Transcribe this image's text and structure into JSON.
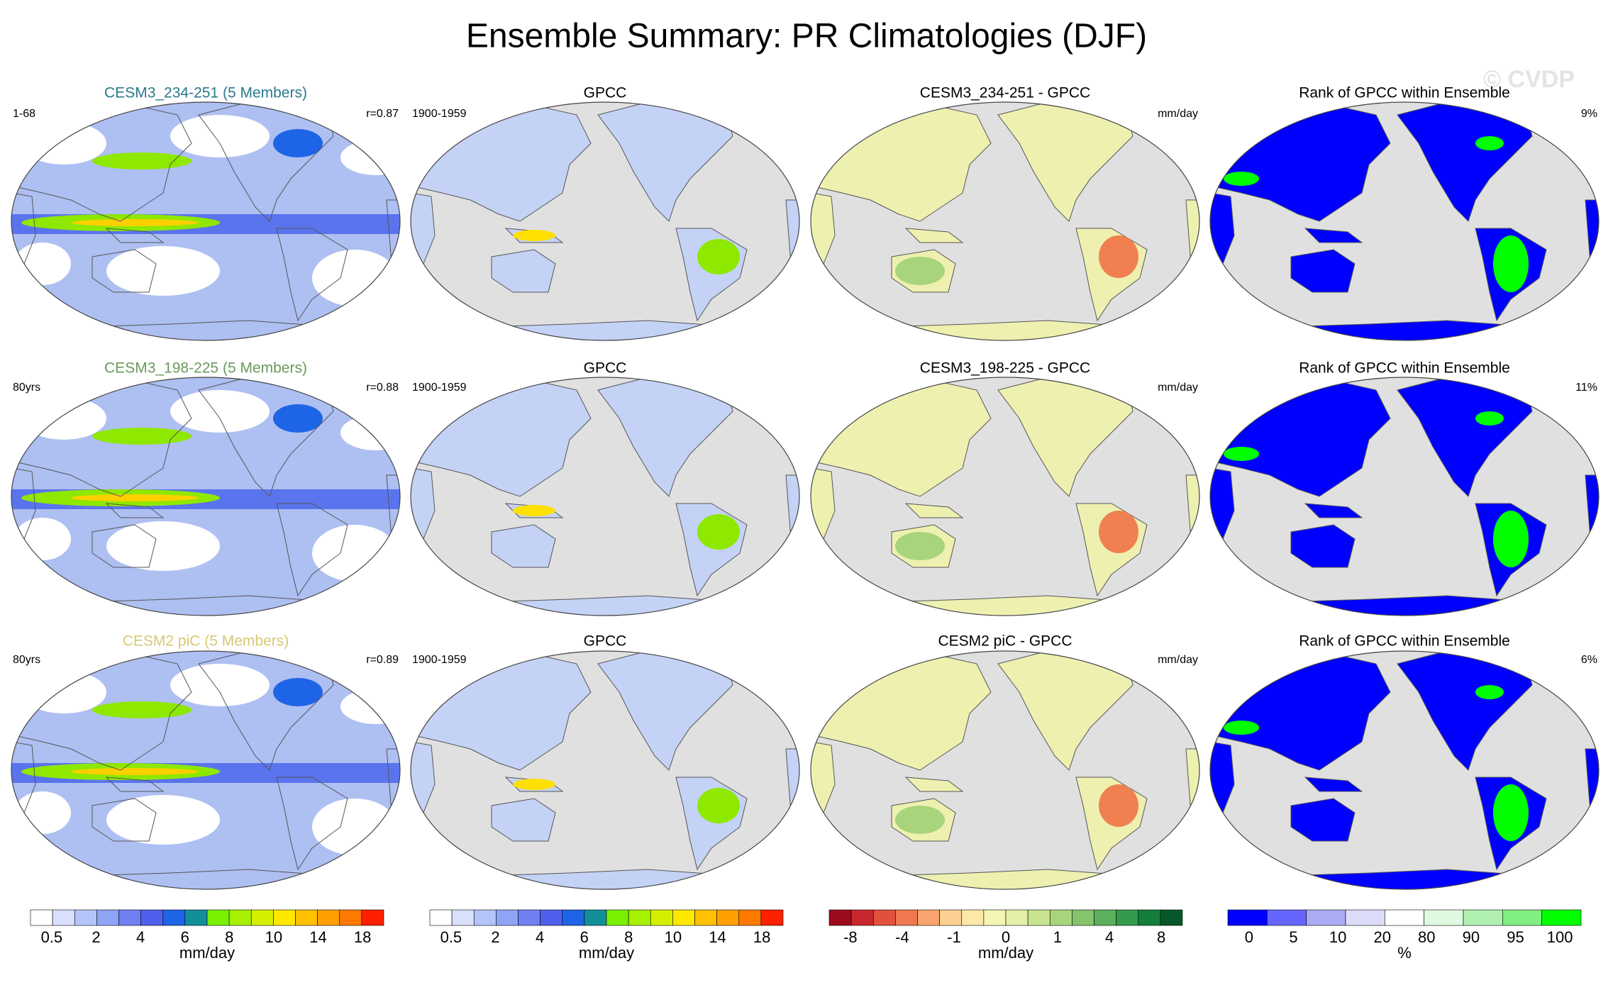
{
  "title": "Ensemble Summary: PR Climatologies (DJF)",
  "watermark": "© CVDP",
  "rows": [
    {
      "panels": [
        {
          "title": "CESM3_234-251 (5 Members)",
          "title_color": "#2a7a8c",
          "left": "1-68",
          "right": "r=0.87"
        },
        {
          "title": "GPCC",
          "left": "1900-1959"
        },
        {
          "title": "CESM3_234-251 - GPCC",
          "right": "mm/day"
        },
        {
          "title": "Rank of GPCC within Ensemble",
          "right": "9%"
        }
      ]
    },
    {
      "panels": [
        {
          "title": "CESM3_198-225 (5 Members)",
          "title_color": "#6a9a5c",
          "left": "80yrs",
          "right": "r=0.88"
        },
        {
          "title": "GPCC",
          "left": "1900-1959"
        },
        {
          "title": "CESM3_198-225 - GPCC",
          "right": "mm/day"
        },
        {
          "title": "Rank of GPCC within Ensemble",
          "right": "11%"
        }
      ]
    },
    {
      "panels": [
        {
          "title": "CESM2 piC (5 Members)",
          "title_color": "#d8c874",
          "left": "80yrs",
          "right": "r=0.89"
        },
        {
          "title": "GPCC",
          "left": "1900-1959"
        },
        {
          "title": "CESM2 piC - GPCC",
          "right": "mm/day"
        },
        {
          "title": "Rank of GPCC within Ensemble",
          "right": "6%"
        }
      ]
    }
  ],
  "colorbars": [
    {
      "colors": [
        "#ffffff",
        "#d8e0fc",
        "#b4c4fa",
        "#90a4f6",
        "#7080f2",
        "#5060ee",
        "#1e64e6",
        "#12909a",
        "#78f000",
        "#a6f000",
        "#d4f000",
        "#ffe800",
        "#ffc000",
        "#ffa000",
        "#ff7800",
        "#ff2000"
      ],
      "labels": [
        "0.5",
        "2",
        "4",
        "6",
        "8",
        "10",
        "14",
        "18"
      ],
      "units": "mm/day"
    },
    {
      "colors": [
        "#ffffff",
        "#d8e0fc",
        "#b4c4fa",
        "#90a4f6",
        "#7080f2",
        "#5060ee",
        "#1e64e6",
        "#12909a",
        "#78f000",
        "#a6f000",
        "#d4f000",
        "#ffe800",
        "#ffc000",
        "#ffa000",
        "#ff7800",
        "#ff2000"
      ],
      "labels": [
        "0.5",
        "2",
        "4",
        "6",
        "8",
        "10",
        "14",
        "18"
      ],
      "units": "mm/day"
    },
    {
      "colors": [
        "#9c0a1e",
        "#c8282d",
        "#e0503c",
        "#f07850",
        "#f8a46c",
        "#fcd090",
        "#fce8a8",
        "#f4f4b4",
        "#e4f0a8",
        "#c8e490",
        "#a8d47c",
        "#84c46c",
        "#5cb05c",
        "#349a4c",
        "#147e3c",
        "#06582a"
      ],
      "labels": [
        "-8",
        "-4",
        "-1",
        "0",
        "1",
        "4",
        "8"
      ],
      "units": "mm/day"
    },
    {
      "colors": [
        "#0000ff",
        "#6666ff",
        "#aaaaf5",
        "#dcdcf8",
        "#ffffff",
        "#e0f8e0",
        "#b0f0b0",
        "#80f080",
        "#00ff00"
      ],
      "labels": [
        "0",
        "5",
        "10",
        "20",
        "80",
        "90",
        "95",
        "100"
      ],
      "units": "%"
    }
  ]
}
